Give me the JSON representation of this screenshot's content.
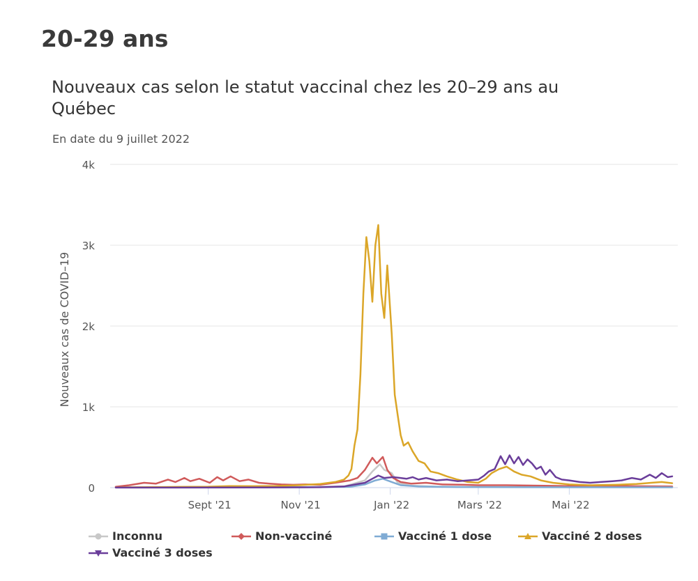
{
  "page": {
    "heading": "20-29 ans"
  },
  "chart_data": {
    "type": "line",
    "title": "Nouveaux cas selon le statut vaccinal chez les 20–29 ans au Québec",
    "subtitle": "En date du 9 juillet 2022",
    "ylabel": "Nouveaux cas de COVID–19",
    "xlabel": "",
    "ylim": [
      0,
      4000
    ],
    "yticks": [
      {
        "value": 0,
        "label": "0"
      },
      {
        "value": 1000,
        "label": "1k"
      },
      {
        "value": 2000,
        "label": "2k"
      },
      {
        "value": 3000,
        "label": "3k"
      },
      {
        "value": 4000,
        "label": "4k"
      }
    ],
    "xrange": [
      "2021-07-01",
      "2022-07-09"
    ],
    "xticks": [
      {
        "date": "2021-09-01",
        "label": "Sept '21"
      },
      {
        "date": "2021-11-01",
        "label": "Nov '21"
      },
      {
        "date": "2022-01-01",
        "label": "Jan '22"
      },
      {
        "date": "2022-03-01",
        "label": "Mars '22"
      },
      {
        "date": "2022-05-01",
        "label": "Mai '22"
      }
    ],
    "series": [
      {
        "name": "Inconnu",
        "color": "#c8c8c8",
        "marker": "circle",
        "points": [
          [
            "2021-07-01",
            5
          ],
          [
            "2021-09-01",
            8
          ],
          [
            "2021-11-01",
            5
          ],
          [
            "2021-12-01",
            15
          ],
          [
            "2021-12-15",
            90
          ],
          [
            "2021-12-20",
            200
          ],
          [
            "2021-12-25",
            290
          ],
          [
            "2021-12-28",
            220
          ],
          [
            "2022-01-02",
            180
          ],
          [
            "2022-01-06",
            60
          ],
          [
            "2022-01-15",
            25
          ],
          [
            "2022-02-01",
            12
          ],
          [
            "2022-03-01",
            8
          ],
          [
            "2022-05-01",
            5
          ],
          [
            "2022-07-09",
            8
          ]
        ]
      },
      {
        "name": "Non-vacciné",
        "color": "#d05a5a",
        "marker": "diamond",
        "points": [
          [
            "2021-07-01",
            10
          ],
          [
            "2021-07-10",
            30
          ],
          [
            "2021-07-20",
            60
          ],
          [
            "2021-07-28",
            50
          ],
          [
            "2021-08-05",
            100
          ],
          [
            "2021-08-10",
            70
          ],
          [
            "2021-08-16",
            120
          ],
          [
            "2021-08-20",
            80
          ],
          [
            "2021-08-26",
            110
          ],
          [
            "2021-09-02",
            60
          ],
          [
            "2021-09-07",
            130
          ],
          [
            "2021-09-11",
            90
          ],
          [
            "2021-09-16",
            140
          ],
          [
            "2021-09-22",
            80
          ],
          [
            "2021-09-28",
            100
          ],
          [
            "2021-10-05",
            60
          ],
          [
            "2021-10-12",
            50
          ],
          [
            "2021-10-20",
            40
          ],
          [
            "2021-10-28",
            35
          ],
          [
            "2021-11-05",
            40
          ],
          [
            "2021-11-15",
            35
          ],
          [
            "2021-11-25",
            60
          ],
          [
            "2021-12-05",
            90
          ],
          [
            "2021-12-10",
            120
          ],
          [
            "2021-12-15",
            220
          ],
          [
            "2021-12-20",
            370
          ],
          [
            "2021-12-23",
            300
          ],
          [
            "2021-12-27",
            380
          ],
          [
            "2021-12-30",
            220
          ],
          [
            "2022-01-03",
            120
          ],
          [
            "2022-01-08",
            70
          ],
          [
            "2022-01-15",
            50
          ],
          [
            "2022-01-25",
            60
          ],
          [
            "2022-02-05",
            40
          ],
          [
            "2022-02-20",
            35
          ],
          [
            "2022-03-01",
            30
          ],
          [
            "2022-03-20",
            30
          ],
          [
            "2022-04-10",
            25
          ],
          [
            "2022-05-01",
            20
          ],
          [
            "2022-06-01",
            20
          ],
          [
            "2022-07-09",
            15
          ]
        ]
      },
      {
        "name": "Vacciné 1 dose",
        "color": "#7fabd4",
        "marker": "square",
        "points": [
          [
            "2021-07-01",
            2
          ],
          [
            "2021-09-01",
            5
          ],
          [
            "2021-11-01",
            4
          ],
          [
            "2021-12-05",
            10
          ],
          [
            "2021-12-15",
            40
          ],
          [
            "2021-12-22",
            90
          ],
          [
            "2021-12-27",
            110
          ],
          [
            "2022-01-02",
            70
          ],
          [
            "2022-01-08",
            30
          ],
          [
            "2022-01-20",
            15
          ],
          [
            "2022-02-15",
            8
          ],
          [
            "2022-04-01",
            5
          ],
          [
            "2022-07-09",
            4
          ]
        ]
      },
      {
        "name": "Vacciné 2 doses",
        "color": "#dba628",
        "marker": "triangle",
        "points": [
          [
            "2021-07-01",
            3
          ],
          [
            "2021-08-01",
            8
          ],
          [
            "2021-09-01",
            12
          ],
          [
            "2021-09-15",
            20
          ],
          [
            "2021-10-01",
            18
          ],
          [
            "2021-10-15",
            20
          ],
          [
            "2021-11-01",
            30
          ],
          [
            "2021-11-15",
            45
          ],
          [
            "2021-11-25",
            70
          ],
          [
            "2021-12-01",
            100
          ],
          [
            "2021-12-04",
            150
          ],
          [
            "2021-12-06",
            230
          ],
          [
            "2021-12-08",
            520
          ],
          [
            "2021-12-10",
            720
          ],
          [
            "2021-12-12",
            1400
          ],
          [
            "2021-12-14",
            2400
          ],
          [
            "2021-12-16",
            3100
          ],
          [
            "2021-12-18",
            2800
          ],
          [
            "2021-12-20",
            2300
          ],
          [
            "2021-12-22",
            3000
          ],
          [
            "2021-12-24",
            3250
          ],
          [
            "2021-12-26",
            2400
          ],
          [
            "2021-12-28",
            2100
          ],
          [
            "2021-12-30",
            2750
          ],
          [
            "2022-01-02",
            1900
          ],
          [
            "2022-01-04",
            1150
          ],
          [
            "2022-01-06",
            900
          ],
          [
            "2022-01-08",
            650
          ],
          [
            "2022-01-10",
            520
          ],
          [
            "2022-01-13",
            560
          ],
          [
            "2022-01-16",
            450
          ],
          [
            "2022-01-20",
            330
          ],
          [
            "2022-01-24",
            300
          ],
          [
            "2022-01-28",
            200
          ],
          [
            "2022-02-02",
            180
          ],
          [
            "2022-02-08",
            140
          ],
          [
            "2022-02-15",
            100
          ],
          [
            "2022-02-22",
            70
          ],
          [
            "2022-03-01",
            60
          ],
          [
            "2022-03-06",
            110
          ],
          [
            "2022-03-10",
            180
          ],
          [
            "2022-03-15",
            230
          ],
          [
            "2022-03-20",
            260
          ],
          [
            "2022-03-25",
            200
          ],
          [
            "2022-03-30",
            160
          ],
          [
            "2022-04-05",
            140
          ],
          [
            "2022-04-12",
            90
          ],
          [
            "2022-04-20",
            60
          ],
          [
            "2022-05-01",
            40
          ],
          [
            "2022-05-15",
            30
          ],
          [
            "2022-06-01",
            35
          ],
          [
            "2022-06-15",
            45
          ],
          [
            "2022-06-25",
            60
          ],
          [
            "2022-07-02",
            70
          ],
          [
            "2022-07-09",
            55
          ]
        ]
      },
      {
        "name": "Vacciné 3 doses",
        "color": "#6a3d9a",
        "marker": "triangle-down",
        "points": [
          [
            "2021-07-01",
            1
          ],
          [
            "2021-10-01",
            2
          ],
          [
            "2021-11-15",
            5
          ],
          [
            "2021-12-01",
            15
          ],
          [
            "2021-12-15",
            60
          ],
          [
            "2021-12-20",
            110
          ],
          [
            "2021-12-24",
            150
          ],
          [
            "2021-12-28",
            120
          ],
          [
            "2022-01-03",
            130
          ],
          [
            "2022-01-08",
            120
          ],
          [
            "2022-01-12",
            110
          ],
          [
            "2022-01-16",
            130
          ],
          [
            "2022-01-20",
            100
          ],
          [
            "2022-01-25",
            120
          ],
          [
            "2022-02-01",
            90
          ],
          [
            "2022-02-08",
            100
          ],
          [
            "2022-02-15",
            80
          ],
          [
            "2022-02-22",
            90
          ],
          [
            "2022-03-01",
            100
          ],
          [
            "2022-03-05",
            150
          ],
          [
            "2022-03-08",
            200
          ],
          [
            "2022-03-12",
            230
          ],
          [
            "2022-03-16",
            390
          ],
          [
            "2022-03-19",
            290
          ],
          [
            "2022-03-22",
            400
          ],
          [
            "2022-03-25",
            300
          ],
          [
            "2022-03-28",
            380
          ],
          [
            "2022-03-31",
            280
          ],
          [
            "2022-04-03",
            350
          ],
          [
            "2022-04-06",
            300
          ],
          [
            "2022-04-09",
            230
          ],
          [
            "2022-04-12",
            260
          ],
          [
            "2022-04-15",
            160
          ],
          [
            "2022-04-18",
            220
          ],
          [
            "2022-04-22",
            130
          ],
          [
            "2022-04-26",
            100
          ],
          [
            "2022-05-01",
            90
          ],
          [
            "2022-05-08",
            70
          ],
          [
            "2022-05-15",
            60
          ],
          [
            "2022-05-22",
            70
          ],
          [
            "2022-05-30",
            80
          ],
          [
            "2022-06-05",
            90
          ],
          [
            "2022-06-12",
            120
          ],
          [
            "2022-06-18",
            100
          ],
          [
            "2022-06-24",
            160
          ],
          [
            "2022-06-28",
            120
          ],
          [
            "2022-07-02",
            180
          ],
          [
            "2022-07-06",
            130
          ],
          [
            "2022-07-09",
            140
          ]
        ]
      }
    ]
  }
}
